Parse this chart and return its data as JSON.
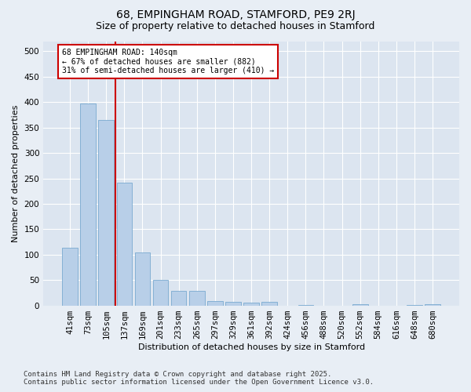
{
  "title_line1": "68, EMPINGHAM ROAD, STAMFORD, PE9 2RJ",
  "title_line2": "Size of property relative to detached houses in Stamford",
  "xlabel": "Distribution of detached houses by size in Stamford",
  "ylabel": "Number of detached properties",
  "categories": [
    "41sqm",
    "73sqm",
    "105sqm",
    "137sqm",
    "169sqm",
    "201sqm",
    "233sqm",
    "265sqm",
    "297sqm",
    "329sqm",
    "361sqm",
    "392sqm",
    "424sqm",
    "456sqm",
    "488sqm",
    "520sqm",
    "552sqm",
    "584sqm",
    "616sqm",
    "648sqm",
    "680sqm"
  ],
  "values": [
    113,
    397,
    365,
    242,
    105,
    50,
    29,
    29,
    9,
    7,
    5,
    7,
    0,
    1,
    0,
    0,
    3,
    0,
    0,
    1,
    3
  ],
  "bar_color": "#b8cfe8",
  "bar_edge_color": "#7aaad0",
  "vline_x": 2.5,
  "vline_color": "#cc0000",
  "annotation_text": "68 EMPINGHAM ROAD: 140sqm\n← 67% of detached houses are smaller (882)\n31% of semi-detached houses are larger (410) →",
  "annotation_box_facecolor": "#ffffff",
  "annotation_box_edgecolor": "#cc0000",
  "ylim": [
    0,
    520
  ],
  "yticks": [
    0,
    50,
    100,
    150,
    200,
    250,
    300,
    350,
    400,
    450,
    500
  ],
  "footer_line1": "Contains HM Land Registry data © Crown copyright and database right 2025.",
  "footer_line2": "Contains public sector information licensed under the Open Government Licence v3.0.",
  "bg_color": "#e8eef5",
  "plot_bg_color": "#dce5f0",
  "grid_color": "#ffffff",
  "title_fontsize": 10,
  "subtitle_fontsize": 9,
  "axis_label_fontsize": 8,
  "tick_fontsize": 7.5,
  "footer_fontsize": 6.5
}
